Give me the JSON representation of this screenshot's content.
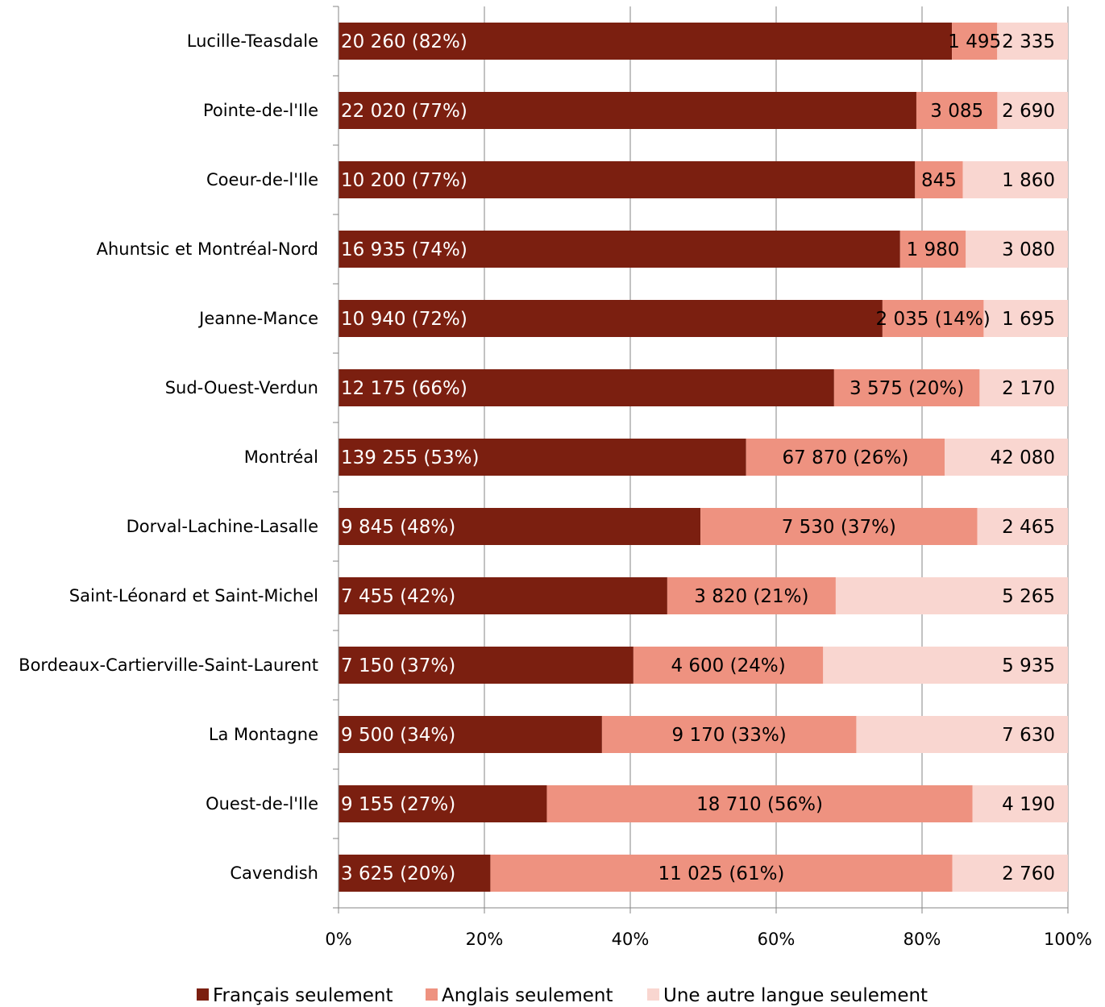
{
  "chart_data": {
    "type": "bar",
    "orientation": "horizontal",
    "stacked": "percent",
    "categories": [
      "Lucille-Teasdale",
      "Pointe-de-l'Ile",
      "Coeur-de-l'Ile",
      "Ahuntsic et Montréal-Nord",
      "Jeanne-Mance",
      "Sud-Ouest-Verdun",
      "Montréal",
      "Dorval-Lachine-Lasalle",
      "Saint-Léonard et Saint-Michel",
      "Bordeaux-Cartierville-Saint-Laurent",
      "La Montagne",
      "Ouest-de-l'Ile",
      "Cavendish"
    ],
    "series": [
      {
        "name": "Français seulement",
        "color": "#7b1f10",
        "label_color": "#ffffff",
        "values": [
          20260,
          22020,
          10200,
          16935,
          10940,
          12175,
          139255,
          9845,
          7455,
          7150,
          9500,
          9155,
          3625
        ],
        "labels": [
          "20 260  (82%)",
          "22 020 (77%)",
          "10 200 (77%)",
          "16 935 (74%)",
          "10 940 (72%)",
          "12 175 (66%)",
          "139 255  (53%)",
          "9 845 (48%)",
          "7 455 (42%)",
          "7 150 (37%)",
          "9 500 (34%)",
          "9 155 (27%)",
          "3 625 (20%)"
        ]
      },
      {
        "name": "Anglais seulement",
        "color": "#ee9280",
        "label_color": "#000000",
        "values": [
          1495,
          3085,
          845,
          1980,
          2035,
          3575,
          67870,
          7530,
          3820,
          4600,
          9170,
          18710,
          11025
        ],
        "labels": [
          "1 495",
          "3 085",
          "845",
          "1 980",
          "2 035 (14%)",
          "3 575 (20%)",
          "67 870  (26%)",
          "7 530 (37%)",
          "3 820 (21%)",
          "4 600 (24%)",
          "9 170 (33%)",
          "18 710 (56%)",
          "11 025 (61%)"
        ]
      },
      {
        "name": "Une autre langue seulement",
        "color": "#f9d6d0",
        "label_color": "#000000",
        "values": [
          2335,
          2690,
          1860,
          3080,
          1695,
          2170,
          42080,
          2465,
          5265,
          5935,
          7630,
          4190,
          2760
        ],
        "labels": [
          "2 335",
          "2 690",
          "1 860",
          "3 080",
          "1 695",
          "2 170",
          "42 080",
          "2 465",
          "5 265",
          "5 935",
          "7 630",
          "4 190",
          "2 760"
        ]
      }
    ],
    "x_ticks": [
      "0%",
      "20%",
      "40%",
      "60%",
      "80%",
      "100%"
    ],
    "xlim": [
      0,
      100
    ],
    "grid": true,
    "legend": "bottom",
    "title": "",
    "xlabel": "",
    "ylabel": ""
  }
}
